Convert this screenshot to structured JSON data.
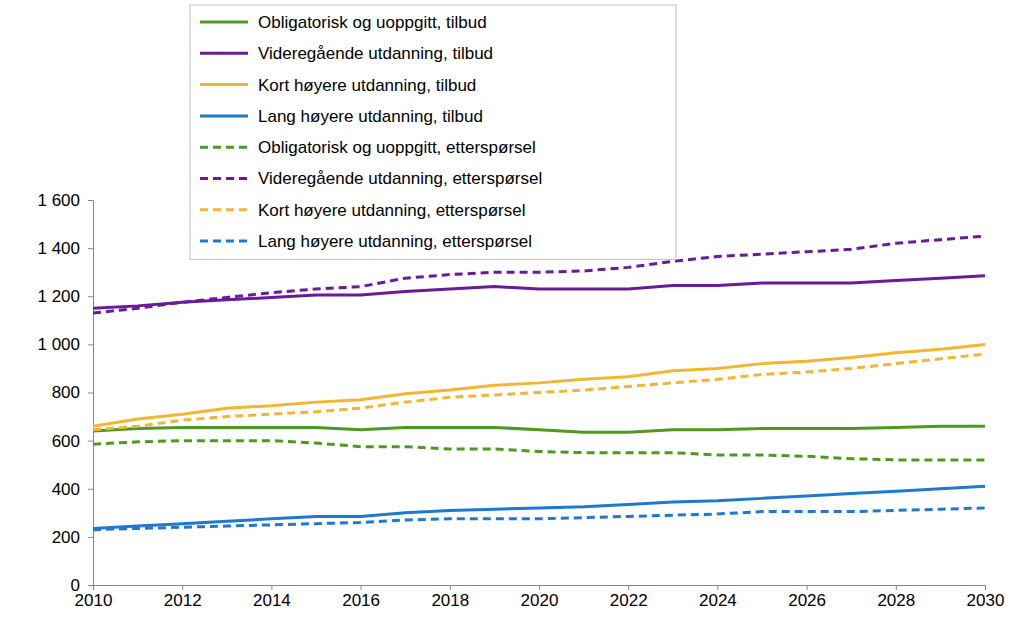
{
  "chart_data": {
    "type": "line",
    "x": [
      2010,
      2011,
      2012,
      2013,
      2014,
      2015,
      2016,
      2017,
      2018,
      2019,
      2020,
      2021,
      2022,
      2023,
      2024,
      2025,
      2026,
      2027,
      2028,
      2029,
      2030
    ],
    "xlim": [
      2010,
      2030
    ],
    "xticks": [
      2010,
      2012,
      2014,
      2016,
      2018,
      2020,
      2022,
      2024,
      2026,
      2028,
      2030
    ],
    "ylim": [
      0,
      1600
    ],
    "yticks": [
      0,
      200,
      400,
      600,
      800,
      {
        "value": 1000,
        "label": "1 000"
      },
      {
        "value": 1200,
        "label": "1 200"
      },
      {
        "value": 1400,
        "label": "1 400"
      },
      {
        "value": 1600,
        "label": "1 600"
      }
    ],
    "grid": false,
    "legend": "top-left",
    "series": [
      {
        "name": "Obligatorisk og uoppgitt, tilbud",
        "color": "#4e9a1f",
        "line_style": "solid",
        "values": [
          640,
          650,
          655,
          655,
          655,
          655,
          645,
          655,
          655,
          655,
          645,
          635,
          635,
          645,
          645,
          650,
          650,
          650,
          655,
          660,
          660
        ]
      },
      {
        "name": "Videregående utdanning, tilbud",
        "color": "#6a1b9a",
        "line_style": "solid",
        "values": [
          1150,
          1160,
          1175,
          1185,
          1195,
          1205,
          1205,
          1220,
          1230,
          1240,
          1230,
          1230,
          1230,
          1245,
          1245,
          1255,
          1255,
          1255,
          1265,
          1275,
          1285
        ]
      },
      {
        "name": "Kort høyere utdanning, tilbud",
        "color": "#f2b631",
        "line_style": "solid",
        "values": [
          660,
          690,
          710,
          735,
          745,
          760,
          770,
          795,
          810,
          830,
          840,
          855,
          865,
          890,
          900,
          920,
          930,
          945,
          965,
          980,
          1000
        ]
      },
      {
        "name": "Lang høyere utdanning, tilbud",
        "color": "#1f78d1",
        "line_style": "solid",
        "values": [
          235,
          245,
          255,
          265,
          275,
          285,
          285,
          300,
          310,
          315,
          320,
          325,
          335,
          345,
          350,
          360,
          370,
          380,
          390,
          400,
          410
        ]
      },
      {
        "name": "Obligatorisk og uoppgitt, etterspørsel",
        "color": "#4e9a1f",
        "line_style": "dashed",
        "values": [
          585,
          595,
          600,
          600,
          600,
          590,
          575,
          575,
          565,
          565,
          555,
          550,
          550,
          550,
          540,
          540,
          535,
          525,
          520,
          520,
          520
        ]
      },
      {
        "name": "Videregående utdanning, etterspørsel",
        "color": "#6a1b9a",
        "line_style": "dashed",
        "values": [
          1130,
          1150,
          1175,
          1195,
          1215,
          1230,
          1240,
          1275,
          1290,
          1300,
          1300,
          1305,
          1320,
          1345,
          1365,
          1375,
          1385,
          1395,
          1420,
          1435,
          1450
        ]
      },
      {
        "name": "Kort høyere utdanning, etterspørsel",
        "color": "#f2b631",
        "line_style": "dashed",
        "values": [
          645,
          660,
          685,
          700,
          710,
          720,
          735,
          760,
          780,
          790,
          800,
          810,
          825,
          840,
          855,
          875,
          885,
          900,
          920,
          940,
          960
        ]
      },
      {
        "name": "Lang høyere utdanning, etterspørsel",
        "color": "#1f78d1",
        "line_style": "dashed",
        "values": [
          230,
          235,
          240,
          245,
          250,
          255,
          260,
          270,
          275,
          275,
          275,
          280,
          285,
          290,
          295,
          305,
          305,
          305,
          310,
          315,
          320
        ]
      }
    ]
  }
}
